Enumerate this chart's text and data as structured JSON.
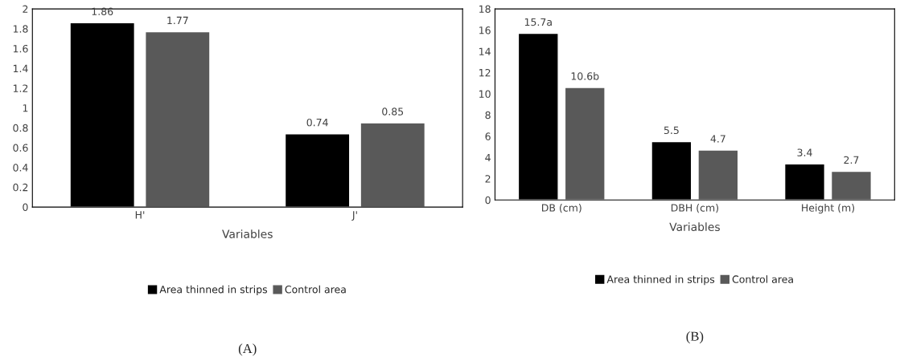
{
  "chart_data": [
    {
      "type": "bar",
      "categories": [
        "H'",
        "J'"
      ],
      "xlabel": "Variables",
      "ylim": [
        0,
        2
      ],
      "yticks": [
        0,
        0.2,
        0.4,
        0.6,
        0.8,
        1,
        1.2,
        1.4,
        1.6,
        1.8,
        2
      ],
      "data_labels": true,
      "legend": "bottom",
      "grid": false,
      "annotations": [
        "(A)"
      ],
      "series": [
        {
          "name": "Area thinned in strips",
          "color": "#000000",
          "values": [
            1.86,
            0.74
          ]
        },
        {
          "name": "Control area",
          "color": "#595959",
          "values": [
            1.77,
            0.85
          ]
        }
      ]
    },
    {
      "type": "bar",
      "categories": [
        "DB (cm)",
        "DBH (cm)",
        "Height (m)"
      ],
      "xlabel": "Variables",
      "ylim": [
        0,
        18
      ],
      "yticks": [
        0,
        2,
        4,
        6,
        8,
        10,
        12,
        14,
        16,
        18
      ],
      "legend": "bottom",
      "grid": false,
      "annotations": [
        "(B)"
      ],
      "series": [
        {
          "name": "Area thinned in strips",
          "color": "#000000",
          "values": [
            15.7,
            5.5,
            3.4
          ],
          "value_labels": [
            "15.7a",
            "5.5",
            "3.4"
          ]
        },
        {
          "name": "Control area",
          "color": "#595959",
          "values": [
            10.6,
            4.7,
            2.7
          ],
          "value_labels": [
            "10.6b",
            "4.7",
            "2.7"
          ]
        }
      ]
    }
  ]
}
